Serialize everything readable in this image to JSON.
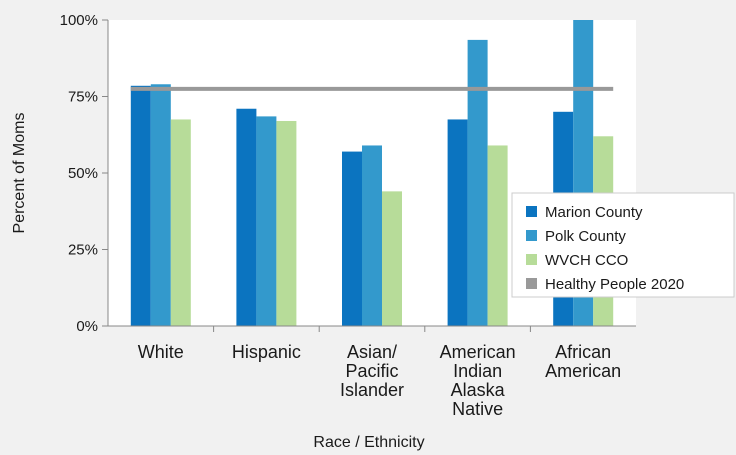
{
  "chart_data": {
    "type": "bar",
    "xlabel": "Race / Ethnicity",
    "ylabel": "Percent of Moms",
    "ylim": [
      0,
      100
    ],
    "yticks": [
      "0%",
      "25%",
      "50%",
      "75%",
      "100%"
    ],
    "ytick_values": [
      0,
      25,
      50,
      75,
      100
    ],
    "categories": [
      [
        "White"
      ],
      [
        "Hispanic"
      ],
      [
        "Asian/",
        "Pacific",
        "Islander"
      ],
      [
        "American",
        "Indian",
        "Alaska",
        "Native"
      ],
      [
        "African",
        "American"
      ]
    ],
    "series": [
      {
        "name": "Marion County",
        "color": "#0b74c0",
        "values": [
          78.5,
          71,
          57,
          67.5,
          70
        ]
      },
      {
        "name": "Polk County",
        "color": "#3399cc",
        "values": [
          79,
          68.5,
          59,
          93.5,
          100
        ]
      },
      {
        "name": "WVCH CCO",
        "color": "#b7dc99",
        "values": [
          67.5,
          67,
          44,
          59,
          62
        ]
      }
    ],
    "reference_line": {
      "name": "Healthy People 2020",
      "color": "#999999",
      "value": 77.5
    },
    "legend_position": "right",
    "grid": false
  }
}
